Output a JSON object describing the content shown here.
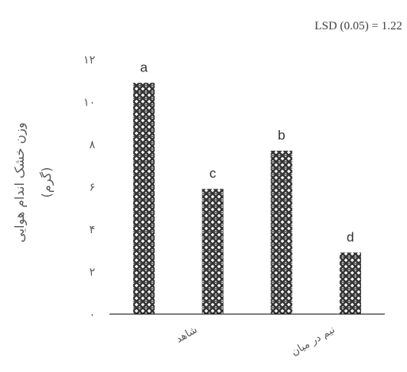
{
  "chart_data": {
    "type": "bar",
    "annotation": "LSD (0.05) = 1.22",
    "ylabel_line1": "وزن خشک اندام هوایی",
    "ylabel_line2": "(گرم)",
    "yticks": [
      "۰",
      "۲",
      "۴",
      "۶",
      "۸",
      "۱۰",
      "۱۲"
    ],
    "ylim": [
      0,
      12
    ],
    "categories": [
      "شاهد",
      "",
      "نیم در میان",
      ""
    ],
    "values": [
      10.9,
      5.9,
      7.7,
      2.9
    ],
    "letters": [
      "a",
      "c",
      "b",
      "d"
    ],
    "bar_pattern_color": "#333333",
    "axis_color": "#000000",
    "grid": false,
    "legend": "none"
  }
}
